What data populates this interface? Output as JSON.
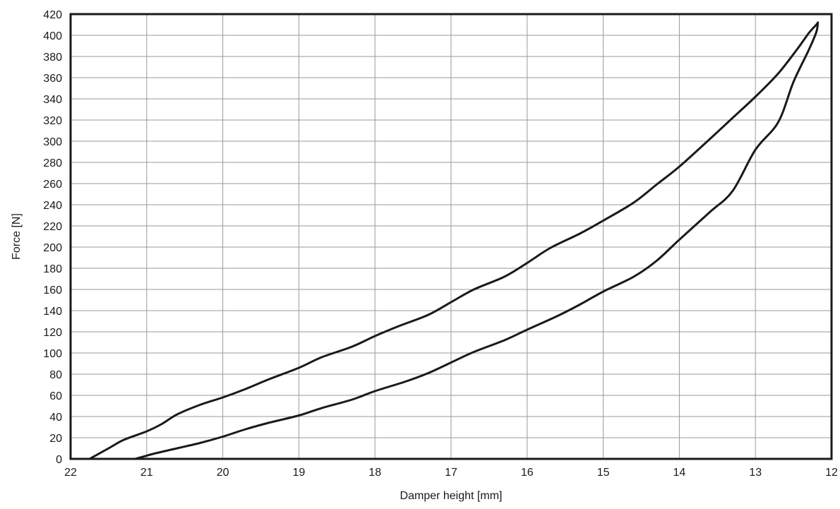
{
  "chart_data": {
    "type": "line",
    "xlabel": "Damper height [mm]",
    "ylabel": "Force [N]",
    "xlim": [
      22,
      12
    ],
    "ylim": [
      0,
      420
    ],
    "x_ticks": [
      22,
      21,
      20,
      19,
      18,
      17,
      16,
      15,
      14,
      13,
      12
    ],
    "y_ticks": [
      0,
      20,
      40,
      60,
      80,
      100,
      120,
      140,
      160,
      180,
      200,
      220,
      240,
      260,
      280,
      300,
      320,
      340,
      360,
      380,
      400,
      420
    ],
    "grid": true,
    "series": [
      {
        "x": [
          21.75,
          21.5,
          21.3,
          21.0,
          20.8,
          20.6,
          20.3,
          20.0,
          19.7,
          19.4,
          19.0,
          18.7,
          18.3,
          18.0,
          17.7,
          17.3,
          17.0,
          16.7,
          16.3,
          16.0,
          15.7,
          15.3,
          15.0,
          14.6,
          14.3,
          14.0,
          13.6,
          13.3,
          13.0,
          12.7,
          12.45,
          12.3,
          12.2,
          12.18
        ],
        "y": [
          0,
          10,
          18,
          26,
          33,
          42,
          51,
          58,
          66,
          75,
          86,
          96,
          106,
          116,
          125,
          136,
          148,
          160,
          172,
          185,
          199,
          213,
          225,
          242,
          259,
          276,
          302,
          322,
          342,
          364,
          387,
          402,
          410,
          412
        ]
      },
      {
        "x": [
          12.18,
          12.2,
          12.3,
          12.5,
          12.7,
          13.0,
          13.3,
          13.6,
          14.0,
          14.3,
          14.6,
          15.0,
          15.3,
          15.6,
          16.0,
          16.3,
          16.7,
          17.0,
          17.3,
          17.6,
          18.0,
          18.3,
          18.7,
          19.0,
          19.4,
          19.7,
          20.0,
          20.3,
          20.6,
          20.9,
          21.05,
          21.15
        ],
        "y": [
          412,
          403,
          386,
          356,
          318,
          292,
          253,
          233,
          207,
          187,
          172,
          158,
          146,
          135,
          122,
          112,
          101,
          91,
          81,
          73,
          64,
          56,
          48,
          41,
          34,
          28,
          21,
          15,
          10,
          5,
          2,
          0
        ]
      }
    ]
  }
}
